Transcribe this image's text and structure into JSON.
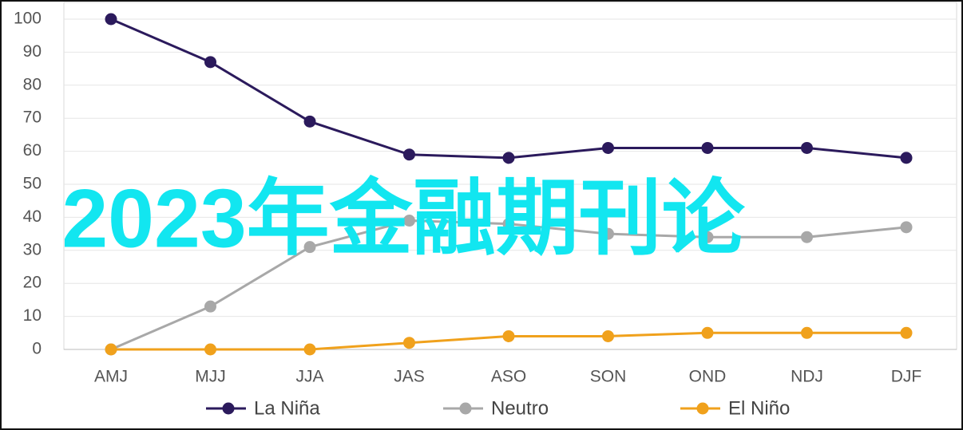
{
  "chart_data": {
    "type": "line",
    "categories": [
      "AMJ",
      "MJJ",
      "JJA",
      "JAS",
      "ASO",
      "SON",
      "OND",
      "NDJ",
      "DJF"
    ],
    "series": [
      {
        "name": "La Niña",
        "color": "#2b1a5c",
        "values": [
          100,
          87,
          69,
          59,
          58,
          61,
          61,
          61,
          58
        ]
      },
      {
        "name": "Neutro",
        "color": "#a8a8a8",
        "values": [
          0,
          13,
          31,
          39,
          38,
          35,
          34,
          34,
          37
        ]
      },
      {
        "name": "El Niño",
        "color": "#f0a11c",
        "values": [
          0,
          0,
          0,
          2,
          4,
          4,
          5,
          5,
          5
        ]
      }
    ],
    "ylim": [
      0,
      100
    ],
    "yticks": [
      0,
      10,
      20,
      30,
      40,
      50,
      60,
      70,
      80,
      90,
      100
    ],
    "grid": true,
    "legend": "bottom",
    "overlay_text": "2023年金融期刊论",
    "overlay_color": "#12e6f0"
  }
}
